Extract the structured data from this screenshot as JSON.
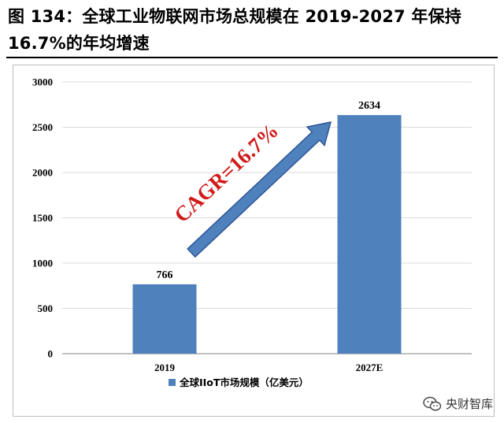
{
  "title_line1": "图 134：全球工业物联网市场总规模在 2019-2027 年保持",
  "title_line2": "16.7%的年均增速",
  "watermark": {
    "text": "央财智库",
    "icon": "wechat-icon"
  },
  "colors": {
    "bar": "#4f81bd",
    "arrow": "#4f81bd",
    "arrow_stroke": "#2f5597",
    "cagr": "#d11a1a",
    "grid": "#d9d9d9",
    "axis": "#808080"
  },
  "chart_data": {
    "type": "bar",
    "categories": [
      "2019",
      "2027E"
    ],
    "series": [
      {
        "name": "全球IIoT市场规模（亿美元）",
        "values": [
          766,
          2634
        ]
      }
    ],
    "data_labels": [
      "766",
      "2634"
    ],
    "ylim": [
      0,
      3000
    ],
    "yticks": [
      0,
      500,
      1000,
      1500,
      2000,
      2500,
      3000
    ],
    "grid": true,
    "legend_position": "bottom",
    "annotation": "CAGR=16.7%",
    "title": "",
    "xlabel": "",
    "ylabel": ""
  }
}
